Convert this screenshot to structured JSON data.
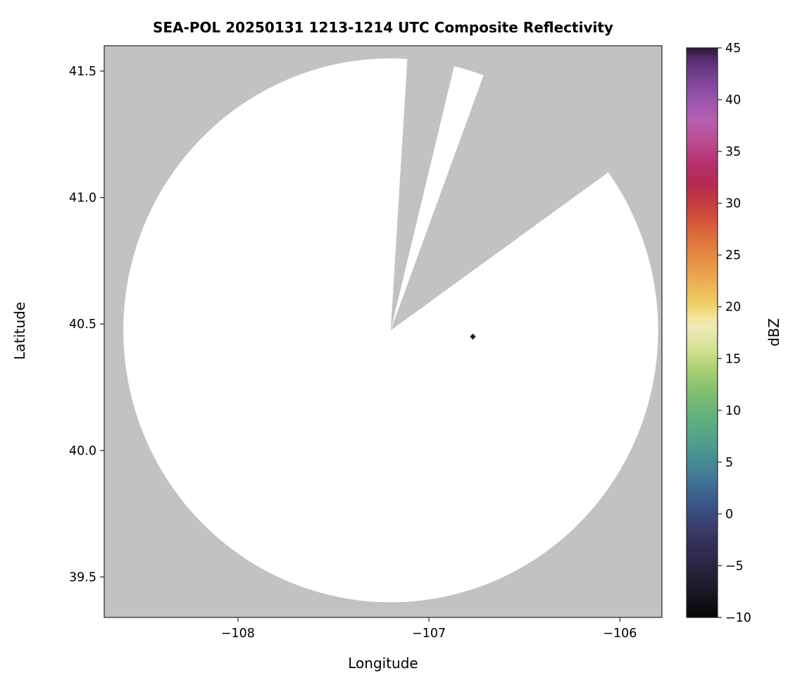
{
  "chart_data": {
    "type": "heatmap",
    "title": "SEA-POL 20250131 1213-1214 UTC Composite Reflectivity",
    "xlabel": "Longitude",
    "ylabel": "Latitude",
    "xlim": [
      -108.7,
      -105.78
    ],
    "ylim": [
      39.34,
      41.6
    ],
    "xticks": [
      -108,
      -107,
      -106
    ],
    "xtick_labels": [
      "−108",
      "−107",
      "−106"
    ],
    "yticks": [
      39.5,
      40.0,
      40.5,
      41.0,
      41.5
    ],
    "ytick_labels": [
      "39.5",
      "40.0",
      "40.5",
      "41.0",
      "41.5"
    ],
    "grid": false,
    "legend": false,
    "colorbar": {
      "label": "dBZ",
      "min": -10,
      "max": 45,
      "ticks": [
        -10,
        -5,
        0,
        5,
        10,
        15,
        20,
        25,
        30,
        35,
        40,
        45
      ],
      "tick_labels": [
        "−10",
        "−5",
        "0",
        "5",
        "10",
        "15",
        "20",
        "25",
        "30",
        "35",
        "40",
        "45"
      ],
      "colormap_name": "spectral-reflectivity",
      "stops": [
        [
          -10,
          "#060608"
        ],
        [
          -8,
          "#16141f"
        ],
        [
          -6,
          "#241f35"
        ],
        [
          -4,
          "#2f2a4d"
        ],
        [
          -2,
          "#373764"
        ],
        [
          0,
          "#3a4a7e"
        ],
        [
          2,
          "#3d6390"
        ],
        [
          4,
          "#437e97"
        ],
        [
          6,
          "#4b9593"
        ],
        [
          8,
          "#57a886"
        ],
        [
          10,
          "#68b578"
        ],
        [
          12,
          "#85c06e"
        ],
        [
          14,
          "#abcf74"
        ],
        [
          16,
          "#d5e294"
        ],
        [
          18,
          "#efeab8"
        ],
        [
          19,
          "#f1e49b"
        ],
        [
          20,
          "#f0d36e"
        ],
        [
          22,
          "#edb455"
        ],
        [
          24,
          "#e79746"
        ],
        [
          26,
          "#e07a3f"
        ],
        [
          28,
          "#d55a39"
        ],
        [
          30,
          "#c43c40"
        ],
        [
          32,
          "#b42a52"
        ],
        [
          34,
          "#b53271"
        ],
        [
          36,
          "#bc4b93"
        ],
        [
          38,
          "#b55fae"
        ],
        [
          40,
          "#9b55ae"
        ],
        [
          42,
          "#7a4396"
        ],
        [
          44,
          "#532c6d"
        ],
        [
          45,
          "#2a1535"
        ]
      ]
    },
    "radar_coverage": {
      "center_lon": -107.2,
      "center_lat": 40.475,
      "radius_lon_deg": 1.4,
      "radius_lat_deg": 1.075,
      "coverage_fill": "#ffffff",
      "masked_fill": "#c2c2c2",
      "blocked_sectors_azimuth_deg": [
        [
          3.5,
          13.5
        ],
        [
          20,
          54
        ]
      ]
    },
    "echoes": [
      {
        "lon": -106.77,
        "lat": 40.45,
        "value_dbz": 45
      }
    ],
    "frame_color": "#262626"
  }
}
